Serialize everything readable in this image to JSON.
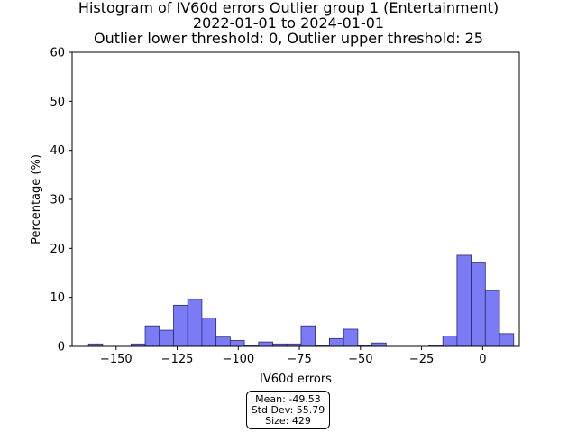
{
  "chart_data": {
    "type": "bar",
    "title_lines": [
      "Histogram of IV60d errors Outlier group 1 (Entertainment)",
      "2022-01-01 to 2024-01-01",
      "Outlier lower threshold: 0, Outlier upper threshold: 25"
    ],
    "xlabel": "IV60d errors",
    "ylabel": "Percentage (%)",
    "xlim": [
      -168,
      15
    ],
    "ylim": [
      0,
      60
    ],
    "xticks": [
      -150,
      -125,
      -100,
      -75,
      -50,
      -25,
      0
    ],
    "yticks": [
      0,
      10,
      20,
      30,
      40,
      50,
      60
    ],
    "bin_width": 5.8,
    "bins": [
      {
        "left": -161.3,
        "value": 0.5
      },
      {
        "left": -155.5,
        "value": 0.0
      },
      {
        "left": -149.7,
        "value": 0.0
      },
      {
        "left": -143.9,
        "value": 0.5
      },
      {
        "left": -138.1,
        "value": 4.2
      },
      {
        "left": -132.3,
        "value": 3.3
      },
      {
        "left": -126.5,
        "value": 8.4
      },
      {
        "left": -120.7,
        "value": 9.6
      },
      {
        "left": -114.9,
        "value": 5.8
      },
      {
        "left": -109.1,
        "value": 1.9
      },
      {
        "left": -103.3,
        "value": 1.2
      },
      {
        "left": -97.5,
        "value": 0.2
      },
      {
        "left": -91.7,
        "value": 0.9
      },
      {
        "left": -85.9,
        "value": 0.5
      },
      {
        "left": -80.1,
        "value": 0.5
      },
      {
        "left": -74.3,
        "value": 4.2
      },
      {
        "left": -68.5,
        "value": 0.2
      },
      {
        "left": -62.7,
        "value": 1.6
      },
      {
        "left": -56.9,
        "value": 3.5
      },
      {
        "left": -51.1,
        "value": 0.2
      },
      {
        "left": -45.3,
        "value": 0.7
      },
      {
        "left": -39.5,
        "value": 0.0
      },
      {
        "left": -33.7,
        "value": 0.0
      },
      {
        "left": -27.9,
        "value": 0.0
      },
      {
        "left": -22.1,
        "value": 0.2
      },
      {
        "left": -16.3,
        "value": 2.1
      },
      {
        "left": -10.5,
        "value": 18.6
      },
      {
        "left": -4.7,
        "value": 17.2
      },
      {
        "left": 1.1,
        "value": 11.4
      },
      {
        "left": 6.9,
        "value": 2.6
      }
    ],
    "bar_color": "#7b7bf6",
    "bar_edge_color": "#2a2a6e",
    "grid": false,
    "legend": "none",
    "stats": {
      "mean": "Mean: -49.53",
      "std_dev": "Std Dev: 55.79",
      "size": "Size: 429"
    }
  }
}
